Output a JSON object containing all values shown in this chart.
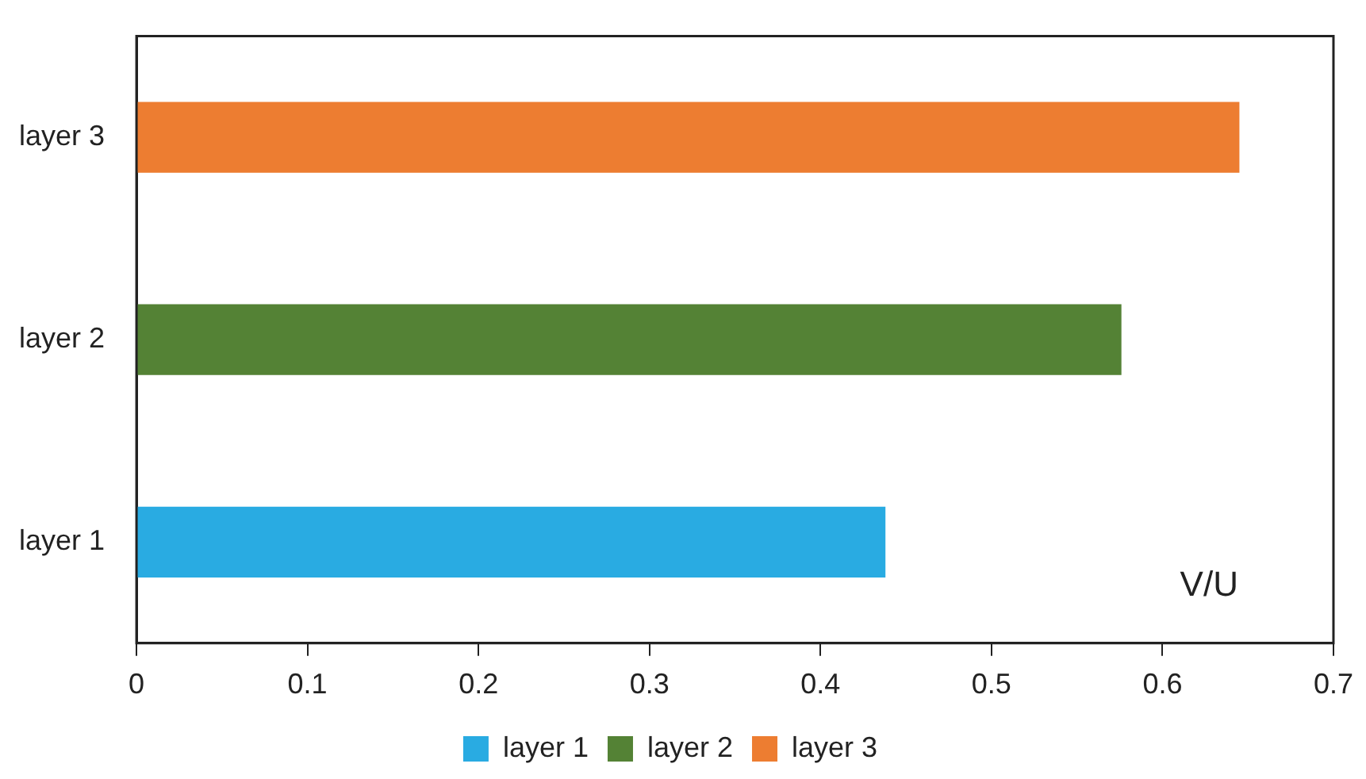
{
  "chart_data": {
    "type": "bar",
    "orientation": "horizontal",
    "xlabel": "V/U",
    "categories": [
      "layer 3",
      "layer 2",
      "layer 1"
    ],
    "series": [
      {
        "name": "layer 1",
        "color": "#29abe2",
        "values": [
          null,
          null,
          0.438
        ]
      },
      {
        "name": "layer 2",
        "color": "#548235",
        "values": [
          null,
          0.576,
          null
        ]
      },
      {
        "name": "layer 3",
        "color": "#ed7d31",
        "values": [
          0.645,
          null,
          null
        ]
      }
    ],
    "xlim": [
      0,
      0.7
    ],
    "xticks": [
      0,
      0.1,
      0.2,
      0.3,
      0.4,
      0.5,
      0.6,
      0.7
    ],
    "grid": false,
    "legend": "bottom"
  }
}
